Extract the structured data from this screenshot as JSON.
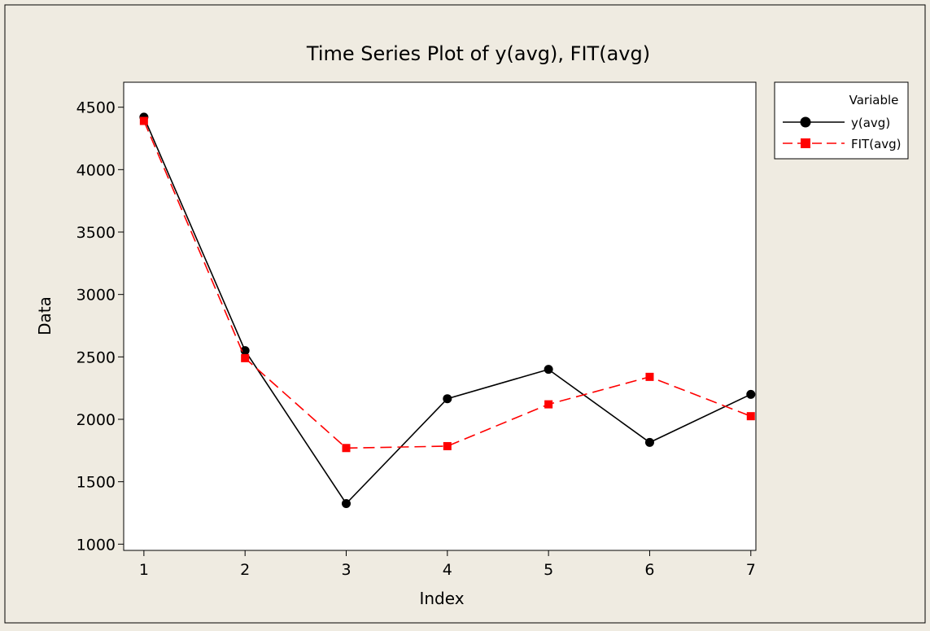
{
  "chart_data": {
    "type": "line",
    "title": "Time Series Plot of y(avg), FIT(avg)",
    "xlabel": "Index",
    "ylabel": "Data",
    "x": [
      1,
      2,
      3,
      4,
      5,
      6,
      7
    ],
    "xlim": [
      0.8,
      7.05
    ],
    "ylim": [
      950,
      4700
    ],
    "yticks": [
      1000,
      1500,
      2000,
      2500,
      3000,
      3500,
      4000,
      4500
    ],
    "grid": false,
    "legend": {
      "title": "Variable",
      "position": "right"
    },
    "series": [
      {
        "name": "y(avg)",
        "values": [
          4420,
          2550,
          1325,
          2165,
          2400,
          1815,
          2200
        ],
        "color": "#000000",
        "marker": "circle",
        "line": "solid"
      },
      {
        "name": "FIT(avg)",
        "values": [
          4390,
          2490,
          1770,
          1785,
          2120,
          2340,
          2025
        ],
        "color": "#ff0000",
        "marker": "square",
        "line": "dashed"
      }
    ]
  },
  "colors": {
    "background": "#efebe1",
    "plot_area": "#ffffff",
    "frame": "#000000"
  }
}
